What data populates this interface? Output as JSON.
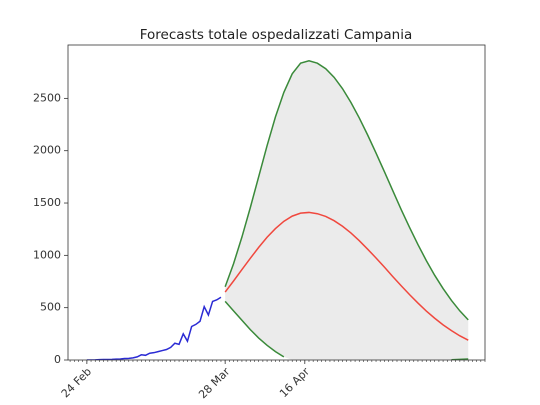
{
  "chart_data": {
    "type": "line",
    "title": "Forecasts totale ospedalizzati Campania",
    "xlim": [
      -4.5,
      95
    ],
    "ylim": [
      0,
      3010
    ],
    "xticks": [
      {
        "value": 0,
        "label": "24 Feb"
      },
      {
        "value": 33,
        "label": "28 Mar"
      },
      {
        "value": 52,
        "label": "16 Apr"
      }
    ],
    "yticks": [
      0,
      500,
      1000,
      1500,
      2000,
      2500
    ],
    "observed": {
      "color": "#2b2bd4",
      "x": [
        0,
        1,
        2,
        3,
        4,
        5,
        6,
        7,
        8,
        9,
        10,
        11,
        12,
        13,
        14,
        15,
        16,
        17,
        18,
        19,
        20,
        21,
        22,
        23,
        24,
        25,
        26,
        27,
        28,
        29,
        30,
        31,
        32
      ],
      "values": [
        0,
        0,
        1,
        3,
        5,
        5,
        6,
        8,
        10,
        14,
        15,
        20,
        30,
        50,
        45,
        65,
        70,
        80,
        90,
        100,
        120,
        160,
        150,
        250,
        180,
        320,
        340,
        370,
        510,
        430,
        560,
        575,
        600
      ]
    },
    "forecast": {
      "x": [
        33,
        35,
        37,
        39,
        41,
        43,
        45,
        47,
        49,
        51,
        53,
        55,
        57,
        59,
        61,
        63,
        65,
        67,
        69,
        71,
        73,
        75,
        77,
        79,
        81,
        83,
        85,
        87,
        89,
        91
      ],
      "fill_color": "#ebebeb",
      "mean": {
        "color": "#f0483e",
        "values": [
          649,
          755,
          864,
          972,
          1076,
          1173,
          1256,
          1325,
          1375,
          1403,
          1410,
          1398,
          1372,
          1331,
          1278,
          1214,
          1140,
          1059,
          975,
          887,
          797,
          710,
          625,
          544,
          468,
          399,
          336,
          281,
          231,
          189
        ]
      },
      "upper": {
        "color": "#3a8a3a",
        "values": [
          700,
          920,
          1175,
          1456,
          1752,
          2048,
          2323,
          2557,
          2735,
          2837,
          2859,
          2836,
          2783,
          2701,
          2593,
          2462,
          2313,
          2150,
          1977,
          1799,
          1618,
          1438,
          1267,
          1103,
          950,
          809,
          683,
          569,
          469,
          383
        ]
      },
      "lower": {
        "color": "#3a8a3a",
        "values": [
          560,
          470,
          380,
          290,
          210,
          140,
          80,
          30,
          null,
          null,
          null,
          null,
          null,
          null,
          null,
          null,
          null,
          null,
          null,
          null,
          null,
          null,
          null,
          null,
          null,
          null,
          null,
          2,
          6,
          10
        ]
      }
    }
  }
}
